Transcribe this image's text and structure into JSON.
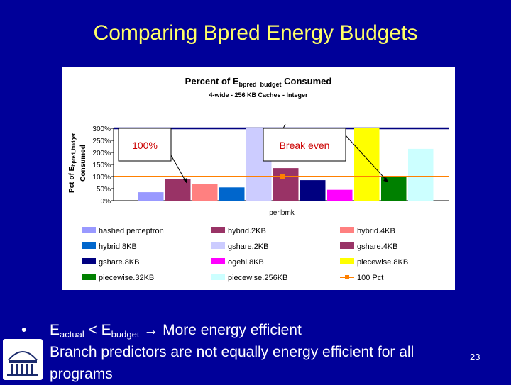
{
  "slide": {
    "title": "Comparing Bpred Energy Budgets",
    "page_number": "23",
    "bullets": [
      {
        "prefix": "E",
        "sub1": "actual",
        "mid": " < E",
        "sub2": "budget",
        "rest": " → More energy efficient"
      },
      {
        "text": "Branch predictors are not equally energy efficient for all"
      },
      {
        "text": "programs"
      }
    ],
    "logo": "university-rotunda-logo"
  },
  "chart_data": {
    "type": "bar",
    "title": "Percent of Ebpred_budget Consumed",
    "title_main": "Percent of E",
    "title_sub": "bpred_budget",
    "title_end": " Consumed",
    "subtitle": "4-wide - 256 KB Caches - Integer",
    "ylabel_line1_pre": "Pct of E",
    "ylabel_line1_sub": "bpred_budget",
    "ylabel_line2": "Consumed",
    "xlabel": "perlbmk",
    "ylim": [
      0,
      300
    ],
    "yticks": [
      "0%",
      "50%",
      "100%",
      "150%",
      "200%",
      "250%",
      "300%"
    ],
    "grid": false,
    "legend_position": "bottom",
    "series": [
      {
        "name": "hashed perceptron",
        "value": 35,
        "color": "#9999ff"
      },
      {
        "name": "hybrid.2KB",
        "value": 90,
        "color": "#993366"
      },
      {
        "name": "hybrid.4KB",
        "value": 70,
        "color": "#ff8080"
      },
      {
        "name": "hybrid.8KB",
        "value": 55,
        "color": "#0066cc"
      },
      {
        "name": "gshare.2KB",
        "value": 300,
        "color": "#ccccff"
      },
      {
        "name": "gshare.4KB",
        "value": 135,
        "color": "#993366"
      },
      {
        "name": "gshare.8KB",
        "value": 85,
        "color": "#000080"
      },
      {
        "name": "ogehl.8KB",
        "value": 45,
        "color": "#ff00ff"
      },
      {
        "name": "piecewise.8KB",
        "value": 300,
        "color": "#ffff00"
      },
      {
        "name": "piecewise.32KB",
        "value": 100,
        "color": "#008000"
      },
      {
        "name": "piecewise.256KB",
        "value": 215,
        "color": "#ccffff"
      }
    ],
    "reference_line": {
      "name": "100 Pct",
      "value": 100,
      "color": "#ff8000"
    },
    "annotations": [
      {
        "text": "100%",
        "color": "#cc0000"
      },
      {
        "text": "Break even",
        "color": "#cc0000"
      }
    ]
  }
}
